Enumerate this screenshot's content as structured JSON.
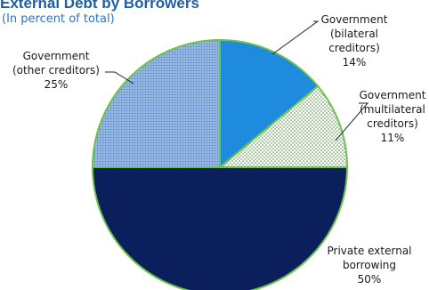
{
  "chart_data": {
    "type": "pie",
    "title": "External Debt by Borrowers",
    "subtitle": "(In percent of total)",
    "slices": [
      {
        "label_lines": [
          "Government",
          "(bilateral",
          "creditors)",
          "14%"
        ],
        "value": 14,
        "color": "#1f8bde",
        "pattern": "solid"
      },
      {
        "label_lines": [
          "Government",
          "(multilateral",
          "creditors)",
          "11%"
        ],
        "value": 11,
        "color": "#4a8a3c",
        "pattern": "dots-light"
      },
      {
        "label_lines": [
          "Private external",
          "borrowing",
          "50%"
        ],
        "value": 50,
        "color": "#0a1f5c",
        "pattern": "solid"
      },
      {
        "label_lines": [
          "Government",
          "(other creditors)",
          "25%"
        ],
        "value": 25,
        "color": "#7ea6d8",
        "pattern": "dots-blue"
      }
    ],
    "slice_border_color": "#6cc24a",
    "legend": "none"
  }
}
